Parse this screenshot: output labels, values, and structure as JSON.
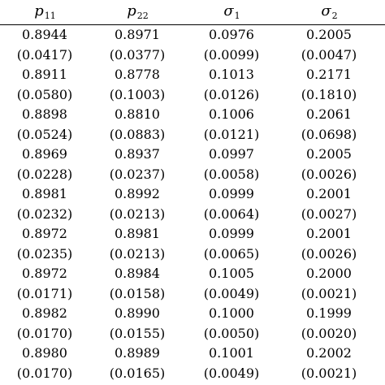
{
  "table": {
    "headers": [
      {
        "symbol": "p",
        "subscript": "11"
      },
      {
        "symbol": "p",
        "subscript": "22"
      },
      {
        "symbol": "σ",
        "subscript": "1"
      },
      {
        "symbol": "σ",
        "subscript": "2"
      }
    ],
    "rows": [
      [
        "0.8944",
        "0.8971",
        "0.0976",
        "0.2005"
      ],
      [
        "(0.0417)",
        "(0.0377)",
        "(0.0099)",
        "(0.0047)"
      ],
      [
        "0.8911",
        "0.8778",
        "0.1013",
        "0.2171"
      ],
      [
        "(0.0580)",
        "(0.1003)",
        "(0.0126)",
        "(0.1810)"
      ],
      [
        "0.8898",
        "0.8810",
        "0.1006",
        "0.2061"
      ],
      [
        "(0.0524)",
        "(0.0883)",
        "(0.0121)",
        "(0.0698)"
      ],
      [
        "0.8969",
        "0.8937",
        "0.0997",
        "0.2005"
      ],
      [
        "(0.0228)",
        "(0.0237)",
        "(0.0058)",
        "(0.0026)"
      ],
      [
        "0.8981",
        "0.8992",
        "0.0999",
        "0.2001"
      ],
      [
        "(0.0232)",
        "(0.0213)",
        "(0.0064)",
        "(0.0027)"
      ],
      [
        "0.8972",
        "0.8981",
        "0.0999",
        "0.2001"
      ],
      [
        "(0.0235)",
        "(0.0213)",
        "(0.0065)",
        "(0.0026)"
      ],
      [
        "0.8972",
        "0.8984",
        "0.1005",
        "0.2000"
      ],
      [
        "(0.0171)",
        "(0.0158)",
        "(0.0049)",
        "(0.0021)"
      ],
      [
        "0.8982",
        "0.8990",
        "0.1000",
        "0.1999"
      ],
      [
        "(0.0170)",
        "(0.0155)",
        "(0.0050)",
        "(0.0020)"
      ],
      [
        "0.8980",
        "0.8989",
        "0.1001",
        "0.2002"
      ],
      [
        "(0.0170)",
        "(0.0165)",
        "(0.0049)",
        "(0.0021)"
      ]
    ]
  }
}
